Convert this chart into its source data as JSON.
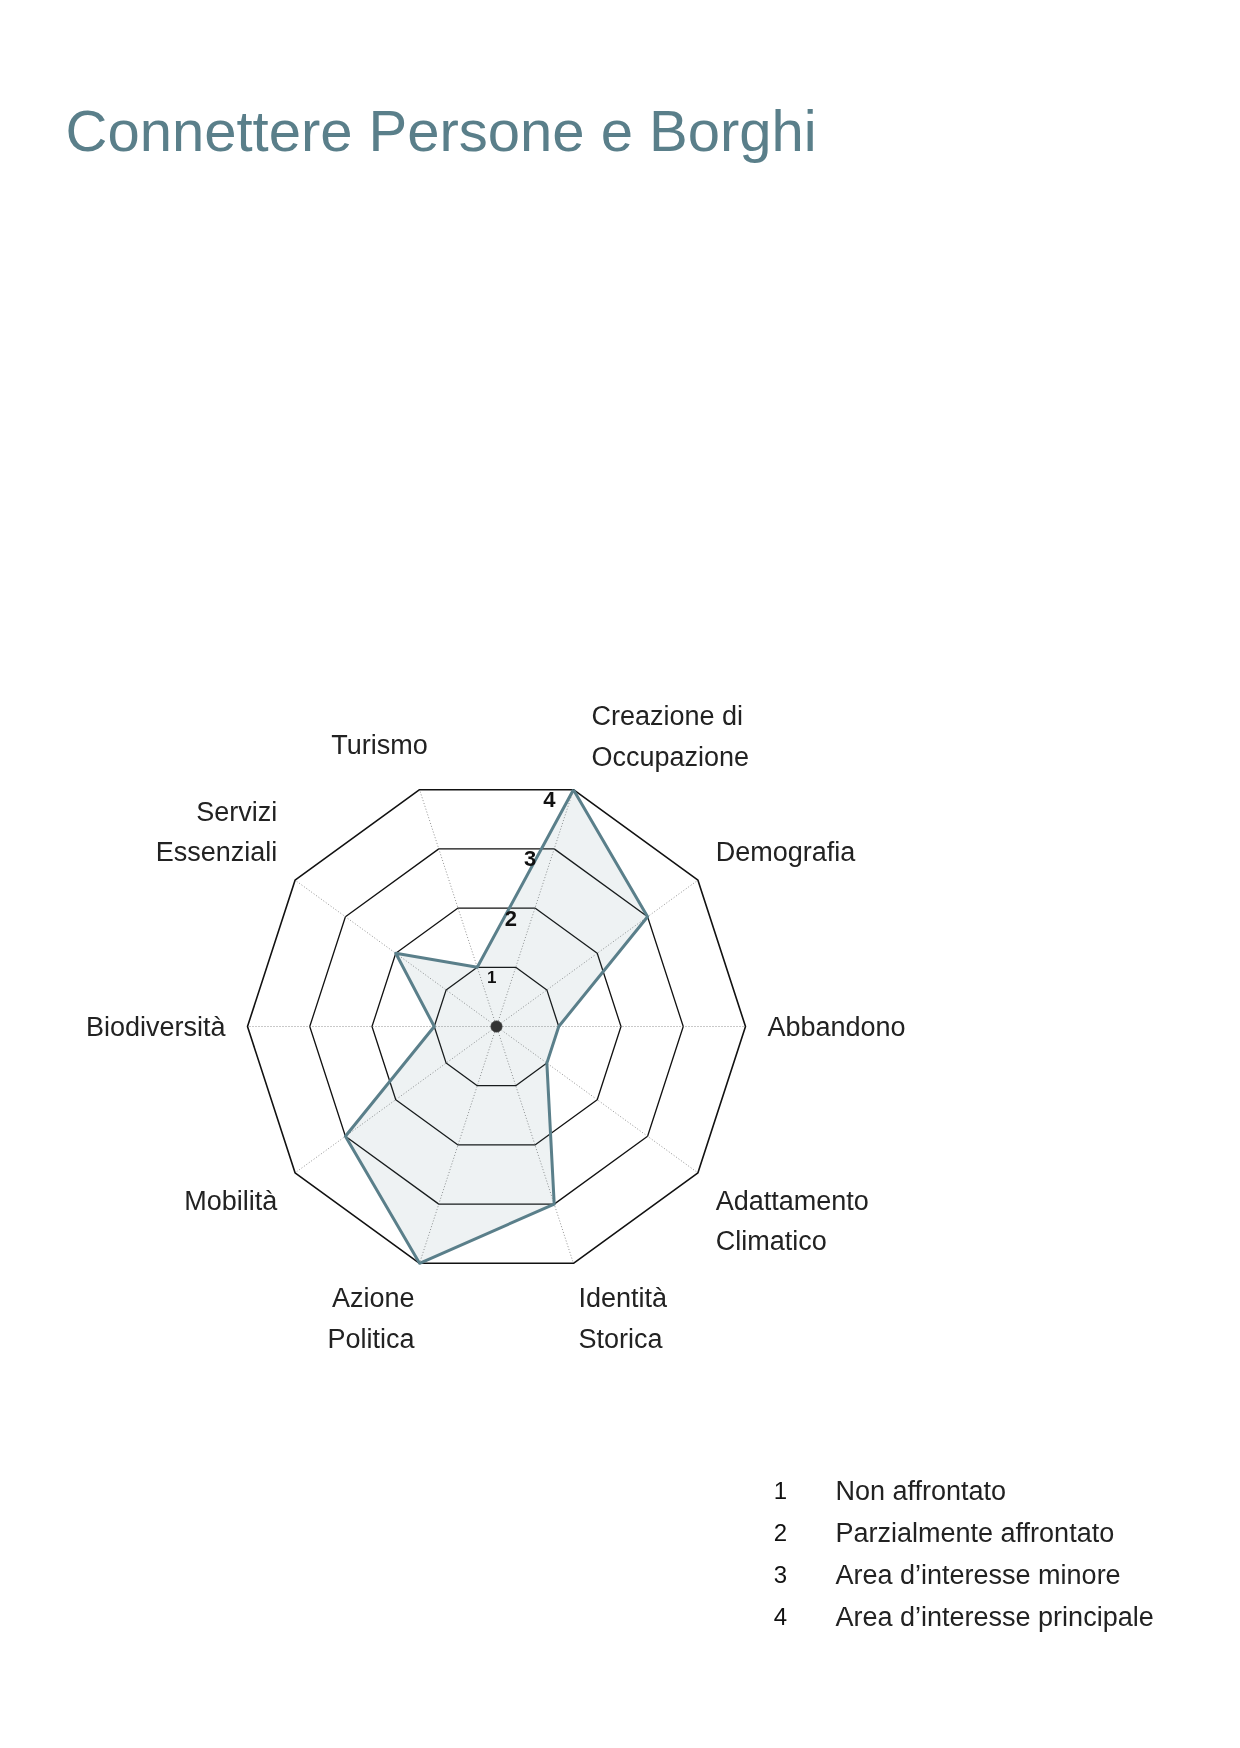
{
  "chart_data": {
    "type": "radar",
    "title": "Connettere Persone e Borghi",
    "categories": [
      "Creazione di\nOccupazione",
      "Demografia",
      "Abbandono",
      "Adattamento\nClimatico",
      "Identità\nStorica",
      "Azione\nPolitica",
      "Mobilità",
      "Biodiversità",
      "Servizi\nEssenziali",
      "Turismo"
    ],
    "series": [
      {
        "color": "#5a7f8a",
        "values": [
          4,
          3,
          1,
          1,
          3,
          4,
          3,
          1,
          2,
          1
        ]
      }
    ],
    "ylim": [
      0,
      4
    ],
    "yticks": [
      1,
      2,
      3,
      4
    ],
    "grid": true,
    "annotations": [
      "1 Non affrontato",
      "2 Parzialmente affrontato",
      "3 Area d’interesse minore",
      "4 Area d’interesse principale"
    ]
  }
}
